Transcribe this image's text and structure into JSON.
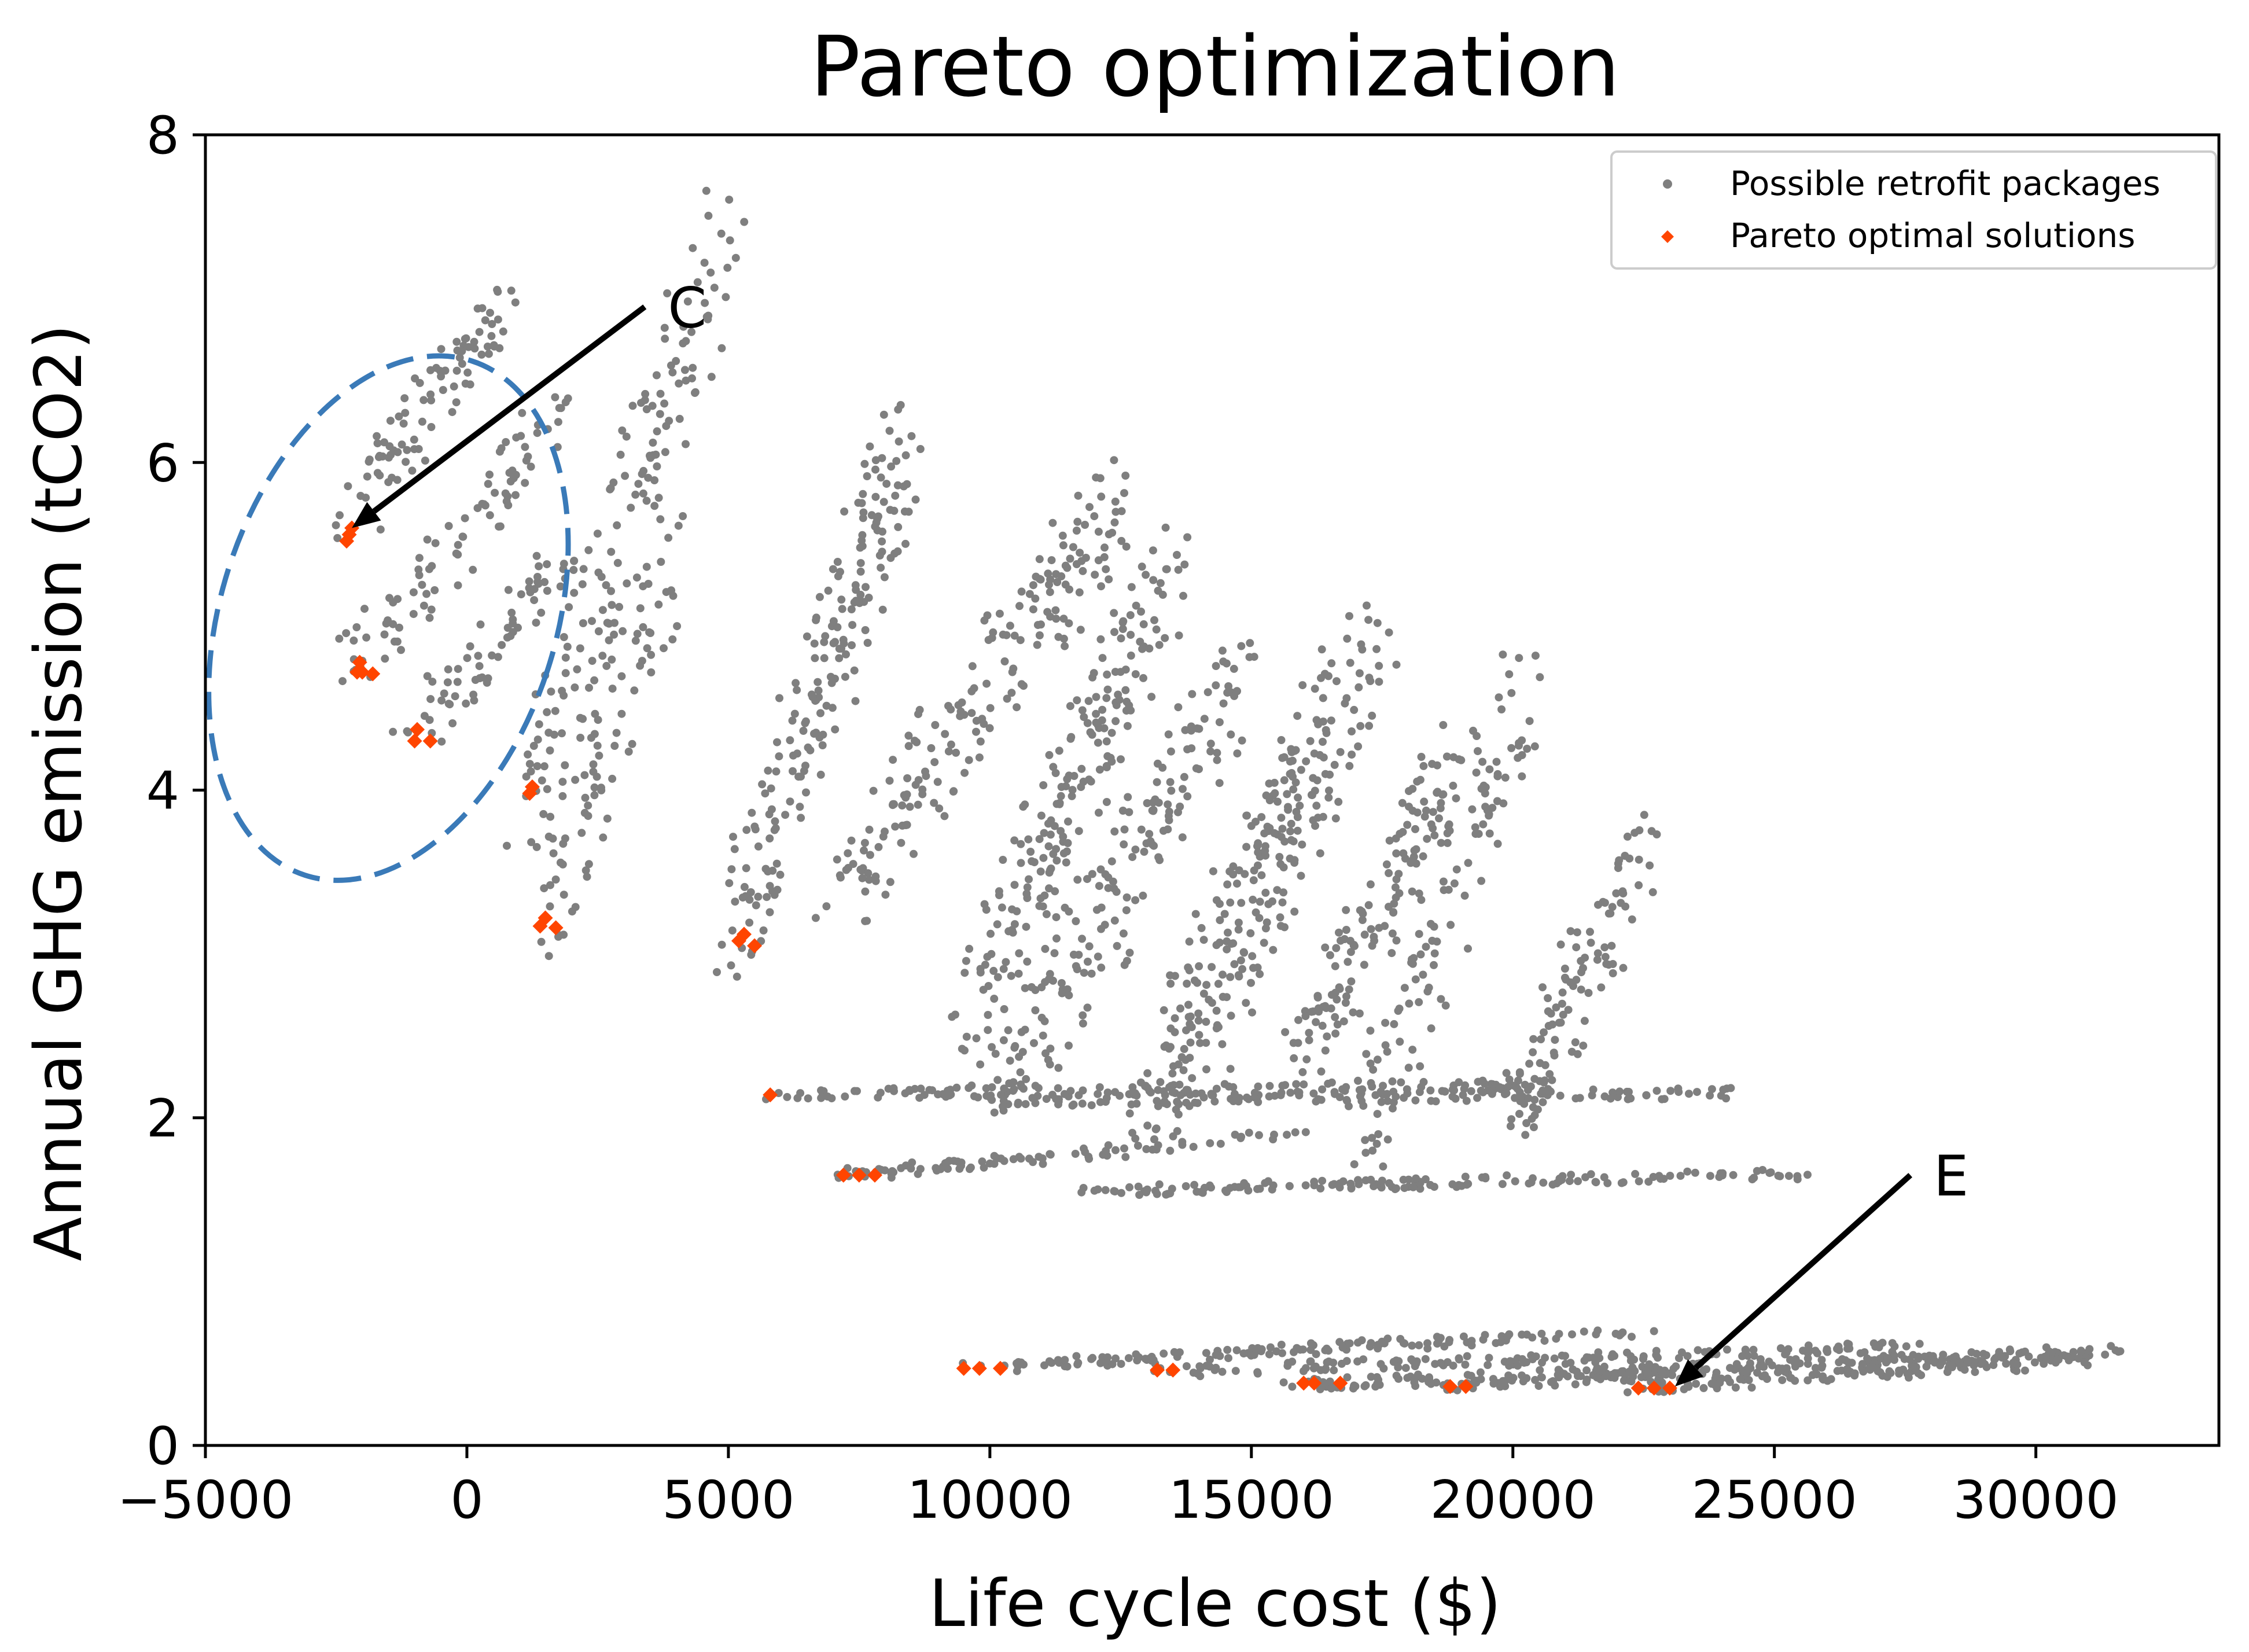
{
  "chart_data": {
    "type": "scatter",
    "title": "Pareto optimization",
    "xlabel": "Life cycle cost ($)",
    "ylabel": "Annual GHG emission (tCO2)",
    "xlim": [
      -5000,
      33500
    ],
    "ylim": [
      0,
      8
    ],
    "xticks": [
      -5000,
      0,
      5000,
      10000,
      15000,
      20000,
      25000,
      30000
    ],
    "xtick_labels": [
      "−5000",
      "0",
      "5000",
      "10000",
      "15000",
      "20000",
      "25000",
      "30000"
    ],
    "yticks": [
      0,
      2,
      4,
      6,
      8
    ],
    "ytick_labels": [
      "0",
      "2",
      "4",
      "6",
      "8"
    ],
    "grid": false,
    "legend_position": "top-right",
    "colors": {
      "retrofit": "#7f7f7f",
      "pareto": "#ff4500",
      "ellipse": "#3a7ab8",
      "axes": "#000000"
    },
    "series": [
      {
        "name": "Possible retrofit packages",
        "marker": "dot",
        "clusters": [
          {
            "x0": -2300,
            "y0": 5.6,
            "x1": 700,
            "y1": 7.0,
            "n": 90
          },
          {
            "x0": -2100,
            "y0": 4.75,
            "x1": 1700,
            "y1": 6.3,
            "n": 90
          },
          {
            "x0": -1000,
            "y0": 4.35,
            "x1": 2000,
            "y1": 5.4,
            "n": 70
          },
          {
            "x0": 1200,
            "y0": 4.0,
            "x1": 5000,
            "y1": 7.5,
            "n": 140
          },
          {
            "x0": 1400,
            "y0": 3.2,
            "x1": 4000,
            "y1": 5.5,
            "n": 90
          },
          {
            "x0": 5200,
            "y0": 3.1,
            "x1": 8400,
            "y1": 6.2,
            "n": 200
          },
          {
            "x0": 7000,
            "y0": 3.3,
            "x1": 12500,
            "y1": 5.8,
            "n": 190
          },
          {
            "x0": 9500,
            "y0": 2.5,
            "x1": 13500,
            "y1": 5.4,
            "n": 210
          },
          {
            "x0": 10200,
            "y0": 2.1,
            "x1": 14800,
            "y1": 4.7,
            "n": 170
          },
          {
            "x0": 13000,
            "y0": 2.0,
            "x1": 16500,
            "y1": 4.6,
            "n": 160
          },
          {
            "x0": 14000,
            "y0": 2.3,
            "x1": 17500,
            "y1": 5.0,
            "n": 120
          },
          {
            "x0": 16000,
            "y0": 2.4,
            "x1": 19000,
            "y1": 4.2,
            "n": 140
          },
          {
            "x0": 17200,
            "y0": 1.9,
            "x1": 20200,
            "y1": 4.6,
            "n": 120
          },
          {
            "x0": 20000,
            "y0": 2.0,
            "x1": 22600,
            "y1": 3.7,
            "n": 110
          },
          {
            "x0": 5800,
            "y0": 2.14,
            "x1": 21000,
            "y1": 2.2,
            "n": 140
          },
          {
            "x0": 9500,
            "y0": 2.1,
            "x1": 24200,
            "y1": 2.15,
            "n": 130
          },
          {
            "x0": 7200,
            "y0": 1.65,
            "x1": 16000,
            "y1": 1.9,
            "n": 90
          },
          {
            "x0": 12000,
            "y0": 1.55,
            "x1": 25500,
            "y1": 1.66,
            "n": 150
          },
          {
            "x0": 9500,
            "y0": 0.47,
            "x1": 22500,
            "y1": 0.7,
            "n": 140
          },
          {
            "x0": 13200,
            "y0": 0.45,
            "x1": 27500,
            "y1": 0.6,
            "n": 150
          },
          {
            "x0": 16000,
            "y0": 0.37,
            "x1": 31500,
            "y1": 0.58,
            "n": 170
          },
          {
            "x0": 18800,
            "y0": 0.36,
            "x1": 30000,
            "y1": 0.55,
            "n": 140
          },
          {
            "x0": 22400,
            "y0": 0.35,
            "x1": 31000,
            "y1": 0.52,
            "n": 110
          }
        ]
      },
      {
        "name": "Pareto optimal solutions",
        "marker": "diamond",
        "points": [
          [
            -2300,
            5.52
          ],
          [
            -2250,
            5.56
          ],
          [
            -2200,
            5.6
          ],
          [
            -2100,
            4.72
          ],
          [
            -2000,
            4.72
          ],
          [
            -1800,
            4.71
          ],
          [
            -2050,
            4.78
          ],
          [
            -1000,
            4.3
          ],
          [
            -950,
            4.37
          ],
          [
            -700,
            4.3
          ],
          [
            1200,
            3.98
          ],
          [
            1250,
            4.02
          ],
          [
            1400,
            3.17
          ],
          [
            1500,
            3.22
          ],
          [
            1700,
            3.16
          ],
          [
            5200,
            3.08
          ],
          [
            5300,
            3.12
          ],
          [
            5500,
            3.05
          ],
          [
            5800,
            2.14
          ],
          [
            7200,
            1.65
          ],
          [
            7500,
            1.65
          ],
          [
            7800,
            1.65
          ],
          [
            9500,
            0.47
          ],
          [
            9800,
            0.47
          ],
          [
            10200,
            0.47
          ],
          [
            13200,
            0.46
          ],
          [
            13500,
            0.46
          ],
          [
            16000,
            0.38
          ],
          [
            16200,
            0.38
          ],
          [
            16700,
            0.38
          ],
          [
            18800,
            0.36
          ],
          [
            19100,
            0.36
          ],
          [
            22400,
            0.35
          ],
          [
            22700,
            0.35
          ],
          [
            23000,
            0.35
          ]
        ]
      }
    ],
    "annotations": [
      {
        "label": "C",
        "from": [
          3400,
          6.95
        ],
        "to": [
          -2200,
          5.6
        ]
      },
      {
        "label": "E",
        "from": [
          27600,
          1.65
        ],
        "to": [
          23100,
          0.36
        ]
      }
    ],
    "highlight_ellipse": {
      "cx": -1500,
      "cy": 5.05,
      "rx": 3200,
      "ry": 1.65,
      "style": "dashed"
    }
  }
}
